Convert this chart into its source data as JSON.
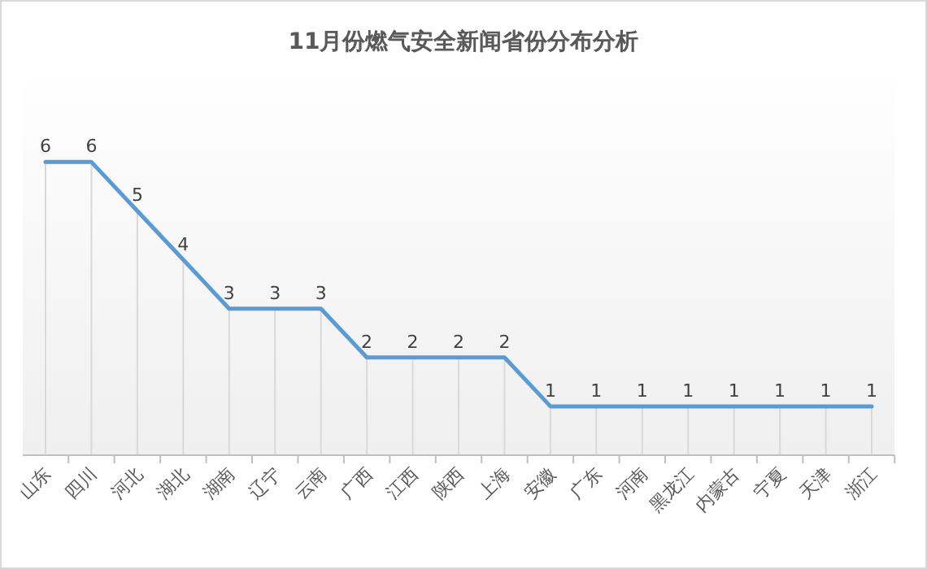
{
  "chart_data": {
    "type": "line",
    "title": "11月份燃气安全新闻省份分布分析",
    "categories": [
      "山东",
      "四川",
      "河北",
      "湖北",
      "湖南",
      "辽宁",
      "云南",
      "广西",
      "江西",
      "陕西",
      "上海",
      "安徽",
      "广东",
      "河南",
      "黑龙江",
      "内蒙古",
      "宁夏",
      "天津",
      "浙江"
    ],
    "series": [
      {
        "color": "#5b9bd5",
        "values": [
          6,
          6,
          5,
          4,
          3,
          3,
          3,
          2,
          2,
          2,
          2,
          1,
          1,
          1,
          1,
          1,
          1,
          1,
          1
        ]
      }
    ],
    "data_labels": true,
    "grid": "x",
    "marker": "none",
    "line_style": "solid"
  }
}
